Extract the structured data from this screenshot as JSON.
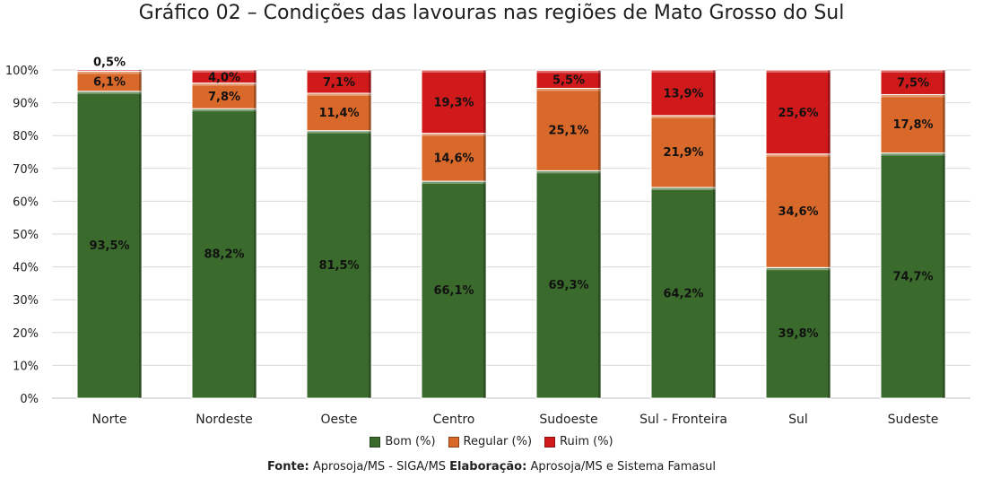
{
  "chart_data": {
    "type": "bar",
    "stacked": true,
    "title_prefix": "Gráfico 02",
    "title_rest": " – Condições das lavouras nas regiões de Mato Grosso do Sul",
    "categories": [
      "Norte",
      "Nordeste",
      "Oeste",
      "Centro",
      "Sudoeste",
      "Sul - Fronteira",
      "Sul",
      "Sudeste"
    ],
    "series": [
      {
        "name": "Bom (%)",
        "color": "#3a6b2c",
        "values": [
          93.5,
          88.2,
          81.5,
          66.1,
          69.3,
          64.2,
          39.8,
          74.7
        ],
        "labels": [
          "93,5%",
          "88,2%",
          "81,5%",
          "66,1%",
          "69,3%",
          "64,2%",
          "39,8%",
          "74,7%"
        ]
      },
      {
        "name": "Regular (%)",
        "color": "#d9692a",
        "values": [
          6.1,
          7.8,
          11.4,
          14.6,
          25.1,
          21.9,
          34.6,
          17.8
        ],
        "labels": [
          "6,1%",
          "7,8%",
          "11,4%",
          "14,6%",
          "25,1%",
          "21,9%",
          "34,6%",
          "17,8%"
        ]
      },
      {
        "name": "Ruim (%)",
        "color": "#d0191b",
        "values": [
          0.5,
          4.0,
          7.1,
          19.3,
          5.5,
          13.9,
          25.6,
          7.5
        ],
        "labels": [
          "0,5%",
          "4,0%",
          "7,1%",
          "19,3%",
          "5,5%",
          "13,9%",
          "25,6%",
          "7,5%"
        ]
      }
    ],
    "ylim": [
      0,
      100
    ],
    "yticks": [
      "0%",
      "10%",
      "20%",
      "30%",
      "40%",
      "50%",
      "60%",
      "70%",
      "80%",
      "90%",
      "100%"
    ],
    "grid": true,
    "legend_position": "bottom"
  },
  "footer": {
    "fonte_label": "Fonte:",
    "fonte_text": " Aprosoja/MS - SIGA/MS ",
    "elaboracao_label": "Elaboração:",
    "elaboracao_text": " Aprosoja/MS e Sistema Famasul"
  }
}
